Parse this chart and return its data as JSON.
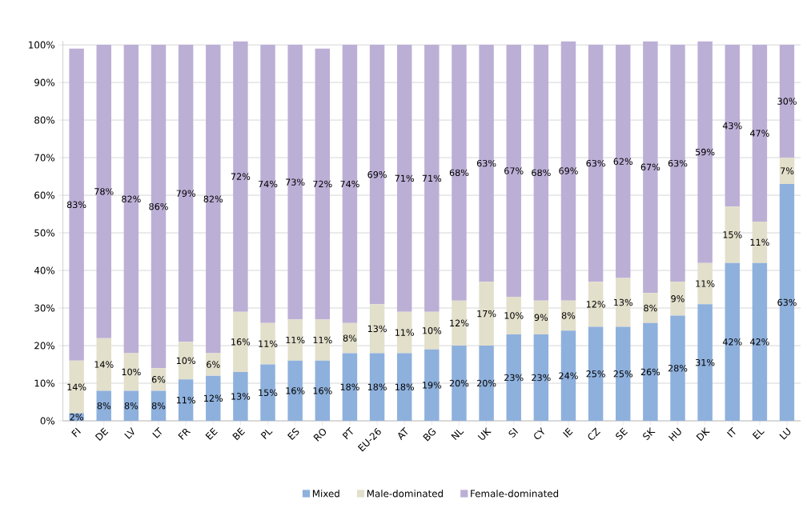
{
  "chart_data": {
    "type": "bar",
    "stacked": true,
    "categories": [
      "FI",
      "DE",
      "LV",
      "LT",
      "FR",
      "EE",
      "BE",
      "PL",
      "ES",
      "RO",
      "PT",
      "EU-26",
      "AT",
      "BG",
      "NL",
      "UK",
      "SI",
      "CY",
      "IE",
      "CZ",
      "SE",
      "SK",
      "HU",
      "DK",
      "IT",
      "EL",
      "LU"
    ],
    "series": [
      {
        "name": "Mixed",
        "color": "#8eb0dc",
        "values": [
          2,
          8,
          8,
          8,
          11,
          12,
          13,
          15,
          16,
          16,
          18,
          18,
          18,
          19,
          20,
          20,
          23,
          23,
          24,
          25,
          25,
          26,
          28,
          31,
          42,
          42,
          63
        ],
        "value_labels": [
          "2%",
          "8%",
          "8%",
          "8%",
          "11%",
          "12%",
          "13%",
          "15%",
          "16%",
          "16%",
          "18%",
          "18%",
          "18%",
          "19%",
          "20%",
          "20%",
          "23%",
          "23%",
          "24%",
          "25%",
          "25%",
          "26%",
          "28%",
          "31%",
          "42%",
          "42%",
          "63%"
        ]
      },
      {
        "name": "Male-dominated",
        "color": "#e2dfcb",
        "values": [
          14,
          14,
          10,
          6,
          10,
          6,
          16,
          11,
          11,
          11,
          8,
          13,
          11,
          10,
          12,
          17,
          10,
          9,
          8,
          12,
          13,
          8,
          9,
          11,
          15,
          11,
          7
        ],
        "value_labels": [
          "14%",
          "14%",
          "10%",
          "6%",
          "10%",
          "6%",
          "16%",
          "11%",
          "11%",
          "11%",
          "8%",
          "13%",
          "11%",
          "10%",
          "12%",
          "17%",
          "10%",
          "9%",
          "8%",
          "12%",
          "13%",
          "8%",
          "9%",
          "11%",
          "15%",
          "11%",
          "7%"
        ]
      },
      {
        "name": "Female-dominated",
        "color": "#bcafd6",
        "values": [
          83,
          78,
          82,
          86,
          79,
          82,
          72,
          74,
          73,
          72,
          74,
          69,
          71,
          71,
          68,
          63,
          67,
          68,
          69,
          63,
          62,
          67,
          63,
          59,
          43,
          47,
          30
        ],
        "value_labels": [
          "83%",
          "78%",
          "82%",
          "86%",
          "79%",
          "82%",
          "72%",
          "74%",
          "73%",
          "72%",
          "74%",
          "69%",
          "71%",
          "71%",
          "68%",
          "63%",
          "67%",
          "68%",
          "69%",
          "63%",
          "62%",
          "67%",
          "63%",
          "59%",
          "43%",
          "47%",
          "30%"
        ]
      }
    ],
    "ylim": [
      0,
      101
    ],
    "yticks": [
      {
        "value": 0,
        "label": "0%"
      },
      {
        "value": 10,
        "label": "10%"
      },
      {
        "value": 20,
        "label": "20%"
      },
      {
        "value": 30,
        "label": "30%"
      },
      {
        "value": 40,
        "label": "40%"
      },
      {
        "value": 50,
        "label": "50%"
      },
      {
        "value": 60,
        "label": "60%"
      },
      {
        "value": 70,
        "label": "70%"
      },
      {
        "value": 80,
        "label": "80%"
      },
      {
        "value": 90,
        "label": "90%"
      },
      {
        "value": 100,
        "label": "100%"
      }
    ],
    "grid": "y",
    "legend": "bottom"
  }
}
